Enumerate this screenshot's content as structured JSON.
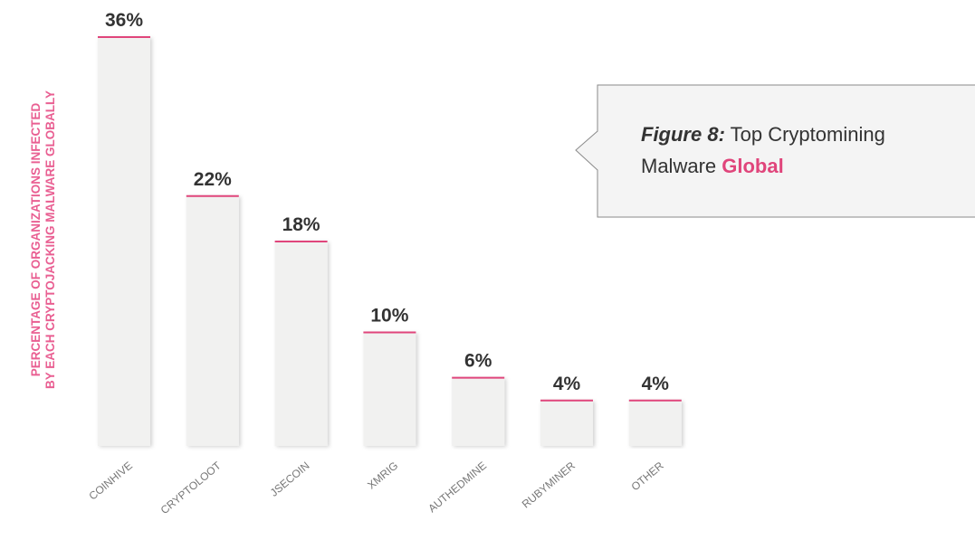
{
  "chart_data": {
    "type": "bar",
    "ylabel": [
      "PERCENTAGE OF ORGANIZATIONS INFECTED",
      "BY EACH CRYPTOJACKING MALWARE GLOBALLY"
    ],
    "categories": [
      "COINHIVE",
      "CRYPTOLOOT",
      "JSECOIN",
      "XMRIG",
      "AUTHEDMINE",
      "RUBYMINER",
      "OTHER"
    ],
    "values": [
      36,
      22,
      18,
      10,
      6,
      4,
      4
    ],
    "value_labels": [
      "36%",
      "22%",
      "18%",
      "10%",
      "6%",
      "4%",
      "4%"
    ],
    "color": "#f1f1f0",
    "accent_color": "#e0457b",
    "ylim": [
      0,
      36
    ],
    "annotation": {
      "label": "Figure 8:",
      "text": "Top Cryptomining",
      "text2": "Malware",
      "highlight": "Global"
    }
  }
}
